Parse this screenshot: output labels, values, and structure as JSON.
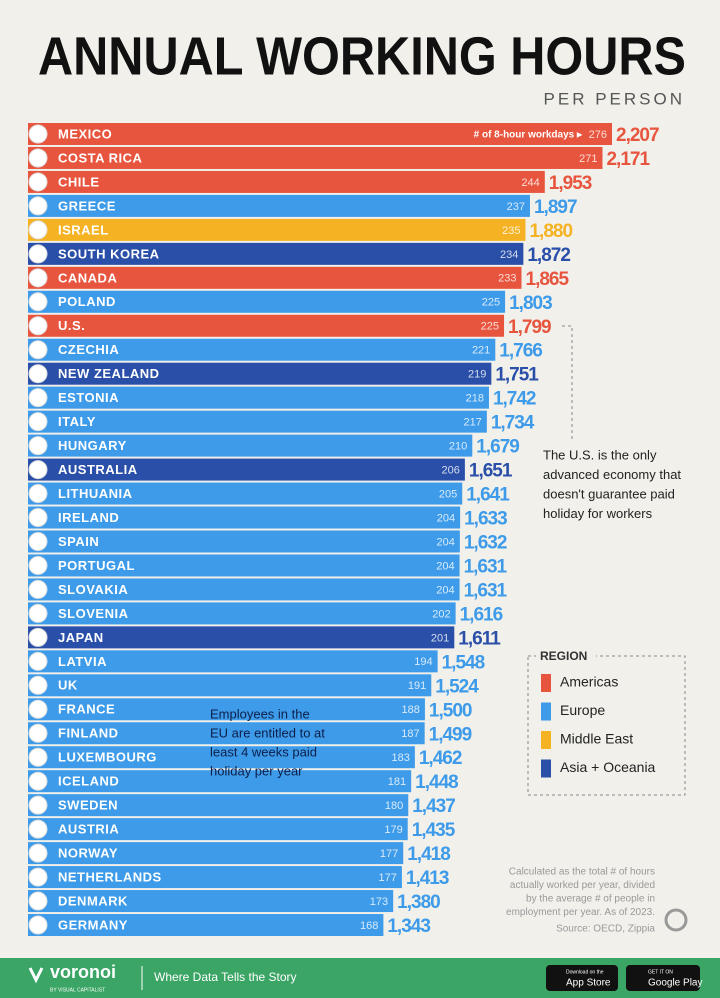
{
  "chart_data": {
    "type": "bar",
    "title": "ANNUAL WORKING HOURS",
    "subtitle": "PER PERSON",
    "categories": [
      "MEXICO",
      "COSTA RICA",
      "CHILE",
      "GREECE",
      "ISRAEL",
      "SOUTH KOREA",
      "CANADA",
      "POLAND",
      "U.S.",
      "CZECHIA",
      "NEW ZEALAND",
      "ESTONIA",
      "ITALY",
      "HUNGARY",
      "AUSTRALIA",
      "LITHUANIA",
      "IRELAND",
      "SPAIN",
      "PORTUGAL",
      "SLOVAKIA",
      "SLOVENIA",
      "JAPAN",
      "LATVIA",
      "UK",
      "FRANCE",
      "FINLAND",
      "LUXEMBOURG",
      "ICELAND",
      "SWEDEN",
      "AUSTRIA",
      "NORWAY",
      "NETHERLANDS",
      "DENMARK",
      "GERMANY"
    ],
    "values": [
      2207,
      2171,
      1953,
      1897,
      1880,
      1872,
      1865,
      1803,
      1799,
      1766,
      1751,
      1742,
      1734,
      1679,
      1651,
      1641,
      1633,
      1632,
      1631,
      1631,
      1616,
      1611,
      1548,
      1524,
      1500,
      1499,
      1462,
      1448,
      1437,
      1435,
      1418,
      1413,
      1380,
      1343
    ],
    "value_labels": [
      "2,207",
      "2,171",
      "1,953",
      "1,897",
      "1,880",
      "1,872",
      "1,865",
      "1,803",
      "1,799",
      "1,766",
      "1,751",
      "1,742",
      "1,734",
      "1,679",
      "1,651",
      "1,641",
      "1,633",
      "1,632",
      "1,631",
      "1,631",
      "1,616",
      "1,611",
      "1,548",
      "1,524",
      "1,500",
      "1,499",
      "1,462",
      "1,448",
      "1,437",
      "1,435",
      "1,418",
      "1,413",
      "1,380",
      "1,343"
    ],
    "workdays": [
      276,
      271,
      244,
      237,
      235,
      234,
      233,
      225,
      225,
      221,
      219,
      218,
      217,
      210,
      206,
      205,
      204,
      204,
      204,
      204,
      202,
      201,
      194,
      191,
      188,
      187,
      183,
      181,
      180,
      179,
      177,
      177,
      173,
      168
    ],
    "workdays_label": "# of 8-hour workdays ▸",
    "regions": [
      "Americas",
      "Americas",
      "Americas",
      "Europe",
      "Middle East",
      "Asia + Oceania",
      "Americas",
      "Europe",
      "Americas",
      "Europe",
      "Asia + Oceania",
      "Europe",
      "Europe",
      "Europe",
      "Asia + Oceania",
      "Europe",
      "Europe",
      "Europe",
      "Europe",
      "Europe",
      "Europe",
      "Asia + Oceania",
      "Europe",
      "Europe",
      "Europe",
      "Europe",
      "Europe",
      "Europe",
      "Europe",
      "Europe",
      "Europe",
      "Europe",
      "Europe",
      "Europe"
    ],
    "legend": {
      "title": "REGION",
      "entries": [
        {
          "name": "Americas",
          "color": "#e8553e"
        },
        {
          "name": "Europe",
          "color": "#3d9be9"
        },
        {
          "name": "Middle East",
          "color": "#f5b324"
        },
        {
          "name": "Asia + Oceania",
          "color": "#2a4fa8"
        }
      ]
    },
    "annotations": [
      {
        "lines": [
          "The U.S. is the only",
          "advanced economy that",
          "doesn't guarantee paid",
          "holiday for workers"
        ]
      },
      {
        "lines": [
          "Employees in the",
          "EU are entitled to at",
          "least 4 weeks paid",
          "holiday per year"
        ]
      }
    ],
    "note": [
      "Calculated as the total # of hours",
      "actually worked per year, divided",
      "by the average # of people in",
      "employment per year. As of 2023."
    ],
    "source": "Source: OECD, Zippia"
  },
  "footer": {
    "brand": "voronoi",
    "brand_sub": "BY VISUAL CAPITALIST",
    "tagline": "Where Data Tells the Story",
    "app_store_small": "Download on the",
    "app_store": "App Store",
    "google_small": "GET IT ON",
    "google": "Google Play"
  }
}
